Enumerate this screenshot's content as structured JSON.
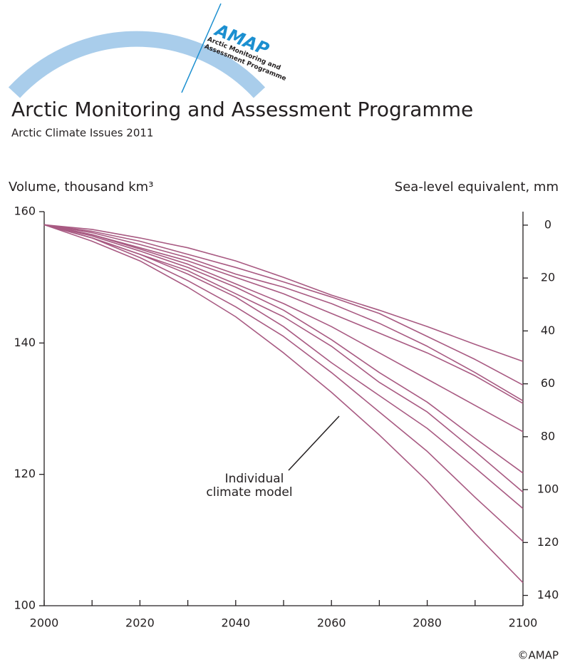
{
  "header": {
    "logo_name": "AMAP",
    "logo_line1": "Arctic Monitoring and",
    "logo_line2": "Assessment Programme"
  },
  "chart_data": {
    "type": "line",
    "title": "Arctic Monitoring and Assessment Programme",
    "subtitle": "Arctic Climate Issues 2011",
    "y_label": "Volume, thousand km³",
    "y2_label": "Sea-level equivalent, mm",
    "annotation": [
      "Individual",
      "climate model"
    ],
    "copyright": "©AMAP",
    "x": [
      2000,
      2010,
      2020,
      2030,
      2040,
      2050,
      2060,
      2070,
      2080,
      2090,
      2100
    ],
    "xlim": [
      2000,
      2100
    ],
    "xticks": [
      2000,
      2020,
      2040,
      2060,
      2080,
      2100
    ],
    "xminorticks": [
      2010,
      2030,
      2050,
      2070,
      2090
    ],
    "ylim": [
      100,
      160
    ],
    "yticks": [
      100,
      120,
      140,
      160
    ],
    "y2lim": [
      -5.1,
      143.9
    ],
    "y2ticks": [
      0,
      20,
      40,
      60,
      80,
      100,
      120,
      140
    ],
    "color": "#a85a82",
    "series": [
      {
        "values": [
          158,
          157.3,
          156,
          154.5,
          152.5,
          150,
          147.3,
          145,
          142.5,
          139.8,
          137.2
        ]
      },
      {
        "values": [
          158,
          157,
          155.5,
          153.5,
          151.5,
          149.3,
          147,
          144.5,
          141,
          137.5,
          133.6
        ]
      },
      {
        "values": [
          158,
          156.8,
          155,
          153,
          150.5,
          148.5,
          146,
          143,
          139.5,
          135.5,
          131.2
        ]
      },
      {
        "values": [
          158,
          156.5,
          154.5,
          152.5,
          150,
          147.5,
          144.5,
          141.5,
          138.5,
          135,
          130.8
        ]
      },
      {
        "values": [
          158,
          156.5,
          154.3,
          152,
          149,
          146,
          142.5,
          138.5,
          134.5,
          130.5,
          126.5
        ]
      },
      {
        "values": [
          158,
          156.3,
          154,
          151.5,
          148.5,
          145,
          140.5,
          135.5,
          131,
          125.5,
          120.2
        ]
      },
      {
        "values": [
          158,
          156,
          153.5,
          151,
          147.5,
          144,
          139.5,
          134,
          129.5,
          123.5,
          117.3
        ]
      },
      {
        "values": [
          158,
          156,
          153.5,
          150.5,
          147,
          142.5,
          137,
          132,
          127,
          121,
          114.8
        ]
      },
      {
        "values": [
          158,
          156,
          153,
          149.5,
          145.5,
          141,
          135.5,
          129.5,
          123.5,
          116.5,
          109.8
        ]
      },
      {
        "values": [
          158,
          155.5,
          152.5,
          148.5,
          144,
          138.5,
          132.5,
          126,
          119,
          111,
          103.5
        ]
      }
    ]
  }
}
